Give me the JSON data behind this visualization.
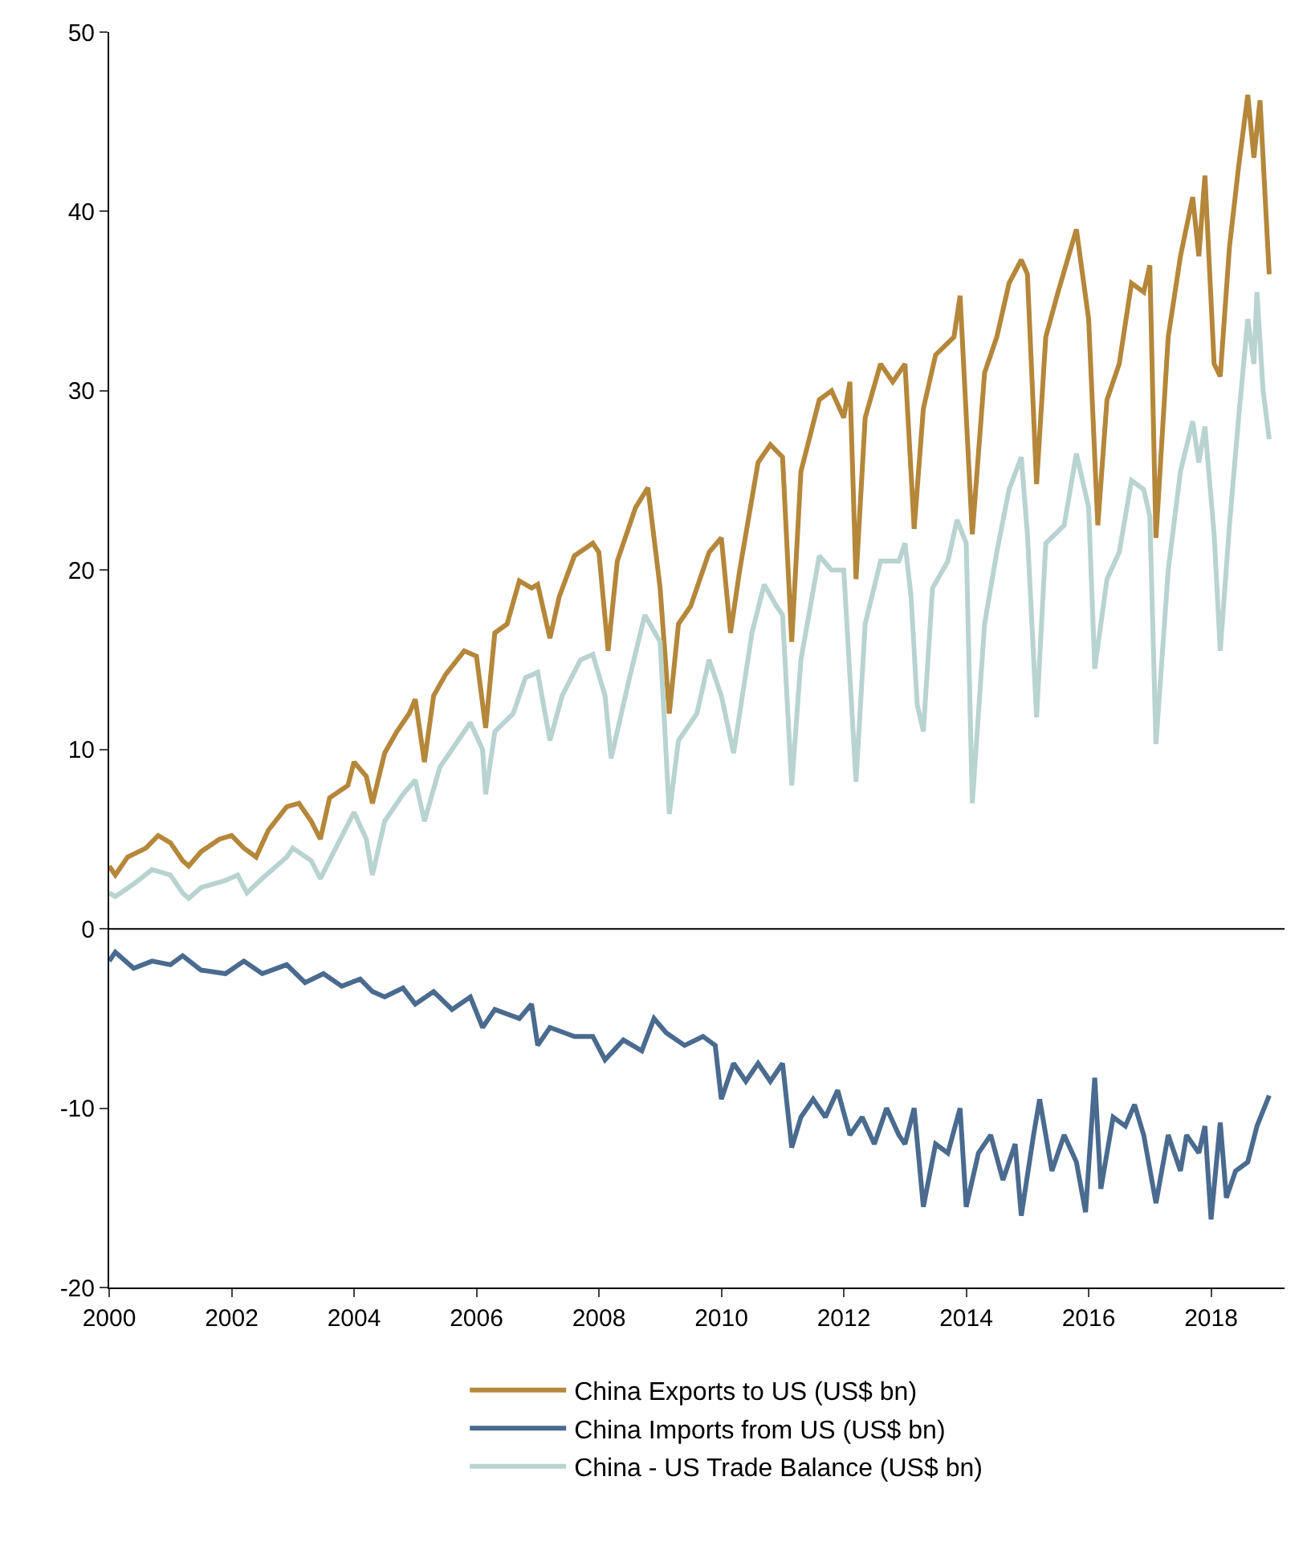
{
  "chart_data": {
    "type": "line",
    "xlim": [
      2000,
      2019.2
    ],
    "xticks": [
      2000,
      2002,
      2004,
      2006,
      2008,
      2010,
      2012,
      2014,
      2016,
      2018
    ],
    "ylim": [
      -20,
      50
    ],
    "yticks": [
      -20,
      -10,
      0,
      10,
      20,
      30,
      40,
      50
    ],
    "ref_lines": [
      {
        "axis": "y",
        "value": 0,
        "color": "#000000"
      }
    ],
    "legend": "bottom",
    "marker": "none",
    "line_style": "solid",
    "series": [
      {
        "name": "China Exports to US (US$ bn)",
        "color": "#b5873a",
        "x": [
          2000.0,
          2000.1,
          2000.3,
          2000.6,
          2000.8,
          2001.0,
          2001.2,
          2001.3,
          2001.5,
          2001.8,
          2002.0,
          2002.2,
          2002.4,
          2002.6,
          2002.9,
          2003.1,
          2003.3,
          2003.45,
          2003.6,
          2003.9,
          2004.0,
          2004.2,
          2004.3,
          2004.5,
          2004.7,
          2004.9,
          2005.0,
          2005.15,
          2005.3,
          2005.5,
          2005.8,
          2006.0,
          2006.15,
          2006.3,
          2006.5,
          2006.7,
          2006.9,
          2007.0,
          2007.2,
          2007.35,
          2007.6,
          2007.9,
          2008.0,
          2008.15,
          2008.3,
          2008.6,
          2008.8,
          2009.0,
          2009.15,
          2009.3,
          2009.5,
          2009.8,
          2010.0,
          2010.15,
          2010.3,
          2010.6,
          2010.8,
          2011.0,
          2011.15,
          2011.3,
          2011.6,
          2011.8,
          2012.0,
          2012.1,
          2012.2,
          2012.35,
          2012.6,
          2012.8,
          2013.0,
          2013.15,
          2013.3,
          2013.5,
          2013.8,
          2013.9,
          2014.1,
          2014.3,
          2014.5,
          2014.7,
          2014.9,
          2015.0,
          2015.15,
          2015.3,
          2015.5,
          2015.8,
          2016.0,
          2016.15,
          2016.3,
          2016.5,
          2016.7,
          2016.9,
          2017.0,
          2017.1,
          2017.3,
          2017.5,
          2017.7,
          2017.8,
          2017.9,
          2018.05,
          2018.15,
          2018.3,
          2018.45,
          2018.6,
          2018.7,
          2018.8,
          2018.95
        ],
        "values": [
          3.5,
          3.0,
          4.0,
          4.5,
          5.2,
          4.8,
          3.8,
          3.5,
          4.3,
          5.0,
          5.2,
          4.5,
          4.0,
          5.5,
          6.8,
          7.0,
          6.0,
          5.0,
          7.3,
          8.0,
          9.3,
          8.5,
          7.0,
          9.8,
          11.0,
          12.0,
          12.8,
          9.3,
          13.0,
          14.2,
          15.5,
          15.2,
          11.2,
          16.5,
          17.0,
          19.4,
          19.0,
          19.2,
          16.2,
          18.5,
          20.8,
          21.5,
          21.0,
          15.5,
          20.5,
          23.5,
          24.6,
          19.0,
          12.0,
          17.0,
          18.0,
          21.0,
          21.8,
          16.5,
          20.0,
          26.0,
          27.0,
          26.3,
          16.0,
          25.5,
          29.5,
          30.0,
          28.5,
          30.5,
          19.5,
          28.5,
          31.5,
          30.5,
          31.5,
          22.3,
          29.0,
          32.0,
          33.0,
          35.3,
          22.0,
          31.0,
          33.0,
          36.0,
          37.3,
          36.5,
          24.8,
          33.0,
          35.5,
          39.0,
          34.0,
          22.5,
          29.5,
          31.5,
          36.0,
          35.5,
          37.0,
          21.8,
          33.0,
          37.5,
          40.8,
          37.5,
          42.0,
          31.5,
          30.8,
          38.0,
          42.5,
          46.5,
          43.0,
          46.2,
          36.5
        ]
      },
      {
        "name": "China Imports from US (US$ bn)",
        "color": "#4a6b8f",
        "x": [
          2000.0,
          2000.1,
          2000.4,
          2000.7,
          2001.0,
          2001.2,
          2001.5,
          2001.9,
          2002.2,
          2002.5,
          2002.9,
          2003.2,
          2003.5,
          2003.8,
          2004.1,
          2004.3,
          2004.5,
          2004.8,
          2005.0,
          2005.3,
          2005.6,
          2005.9,
          2006.1,
          2006.3,
          2006.7,
          2006.9,
          2007.0,
          2007.2,
          2007.6,
          2007.9,
          2008.1,
          2008.4,
          2008.7,
          2008.9,
          2009.1,
          2009.4,
          2009.7,
          2009.9,
          2010.0,
          2010.2,
          2010.4,
          2010.6,
          2010.8,
          2011.0,
          2011.15,
          2011.3,
          2011.5,
          2011.7,
          2011.9,
          2012.1,
          2012.3,
          2012.5,
          2012.7,
          2012.9,
          2013.0,
          2013.15,
          2013.3,
          2013.5,
          2013.7,
          2013.9,
          2014.0,
          2014.2,
          2014.4,
          2014.6,
          2014.8,
          2014.9,
          2015.1,
          2015.2,
          2015.4,
          2015.6,
          2015.8,
          2015.95,
          2016.1,
          2016.2,
          2016.4,
          2016.6,
          2016.75,
          2016.9,
          2017.1,
          2017.3,
          2017.5,
          2017.6,
          2017.8,
          2017.9,
          2018.0,
          2018.15,
          2018.25,
          2018.4,
          2018.6,
          2018.75,
          2018.95
        ],
        "values": [
          -1.8,
          -1.3,
          -2.2,
          -1.8,
          -2.0,
          -1.5,
          -2.3,
          -2.5,
          -1.8,
          -2.5,
          -2.0,
          -3.0,
          -2.5,
          -3.2,
          -2.8,
          -3.5,
          -3.8,
          -3.3,
          -4.2,
          -3.5,
          -4.5,
          -3.8,
          -5.5,
          -4.5,
          -5.0,
          -4.2,
          -6.5,
          -5.5,
          -6.0,
          -6.0,
          -7.3,
          -6.2,
          -6.8,
          -5.0,
          -5.8,
          -6.5,
          -6.0,
          -6.5,
          -9.5,
          -7.5,
          -8.5,
          -7.5,
          -8.5,
          -7.5,
          -12.2,
          -10.5,
          -9.5,
          -10.5,
          -9.0,
          -11.5,
          -10.5,
          -12.0,
          -10.0,
          -11.5,
          -12.0,
          -10.0,
          -15.5,
          -12.0,
          -12.5,
          -10.0,
          -15.5,
          -12.5,
          -11.5,
          -14.0,
          -12.0,
          -16.0,
          -11.5,
          -9.5,
          -13.5,
          -11.5,
          -13.0,
          -15.8,
          -8.3,
          -14.5,
          -10.5,
          -11.0,
          -9.8,
          -11.5,
          -15.3,
          -11.5,
          -13.5,
          -11.5,
          -12.5,
          -11.0,
          -16.2,
          -10.8,
          -15.0,
          -13.5,
          -13.0,
          -11.0,
          -9.3
        ]
      },
      {
        "name": "China - US Trade Balance (US$ bn)",
        "color": "#b8d3d0",
        "x": [
          2000.0,
          2000.1,
          2000.4,
          2000.7,
          2001.0,
          2001.2,
          2001.3,
          2001.5,
          2001.9,
          2002.1,
          2002.25,
          2002.5,
          2002.9,
          2003.0,
          2003.3,
          2003.45,
          2003.7,
          2004.0,
          2004.2,
          2004.3,
          2004.5,
          2004.8,
          2005.0,
          2005.15,
          2005.4,
          2005.7,
          2005.9,
          2006.1,
          2006.15,
          2006.3,
          2006.6,
          2006.8,
          2007.0,
          2007.2,
          2007.4,
          2007.7,
          2007.9,
          2008.1,
          2008.2,
          2008.5,
          2008.75,
          2009.0,
          2009.15,
          2009.3,
          2009.6,
          2009.8,
          2010.0,
          2010.2,
          2010.5,
          2010.7,
          2010.9,
          2011.0,
          2011.15,
          2011.3,
          2011.6,
          2011.8,
          2012.0,
          2012.2,
          2012.35,
          2012.6,
          2012.9,
          2013.0,
          2013.1,
          2013.2,
          2013.3,
          2013.45,
          2013.7,
          2013.85,
          2014.0,
          2014.1,
          2014.3,
          2014.5,
          2014.7,
          2014.9,
          2015.0,
          2015.15,
          2015.3,
          2015.6,
          2015.8,
          2016.0,
          2016.1,
          2016.3,
          2016.5,
          2016.7,
          2016.9,
          2017.0,
          2017.1,
          2017.3,
          2017.5,
          2017.7,
          2017.8,
          2017.9,
          2018.05,
          2018.15,
          2018.3,
          2018.45,
          2018.6,
          2018.7,
          2018.75,
          2018.85,
          2018.95
        ],
        "values": [
          2.0,
          1.8,
          2.5,
          3.3,
          3.0,
          2.0,
          1.7,
          2.3,
          2.7,
          3.0,
          2.0,
          2.8,
          4.0,
          4.5,
          3.8,
          2.8,
          4.5,
          6.5,
          5.0,
          3.0,
          6.0,
          7.5,
          8.3,
          6.0,
          9.0,
          10.5,
          11.5,
          10.0,
          7.5,
          11.0,
          12.0,
          14.0,
          14.3,
          10.5,
          13.0,
          15.0,
          15.3,
          13.0,
          9.5,
          14.0,
          17.5,
          16.0,
          6.4,
          10.5,
          12.0,
          15.0,
          13.0,
          9.8,
          16.5,
          19.2,
          18.0,
          17.5,
          8.0,
          15.0,
          20.8,
          20.0,
          20.0,
          8.2,
          17.0,
          20.5,
          20.5,
          21.5,
          18.5,
          12.5,
          11.0,
          19.0,
          20.5,
          22.8,
          21.5,
          7.0,
          17.0,
          21.0,
          24.5,
          26.3,
          22.0,
          11.8,
          21.5,
          22.5,
          26.5,
          23.5,
          14.5,
          19.5,
          21.0,
          25.0,
          24.5,
          23.0,
          10.3,
          20.0,
          25.5,
          28.3,
          26.0,
          28.0,
          22.0,
          15.5,
          22.5,
          28.5,
          34.0,
          31.5,
          35.5,
          30.0,
          27.3
        ]
      }
    ]
  }
}
